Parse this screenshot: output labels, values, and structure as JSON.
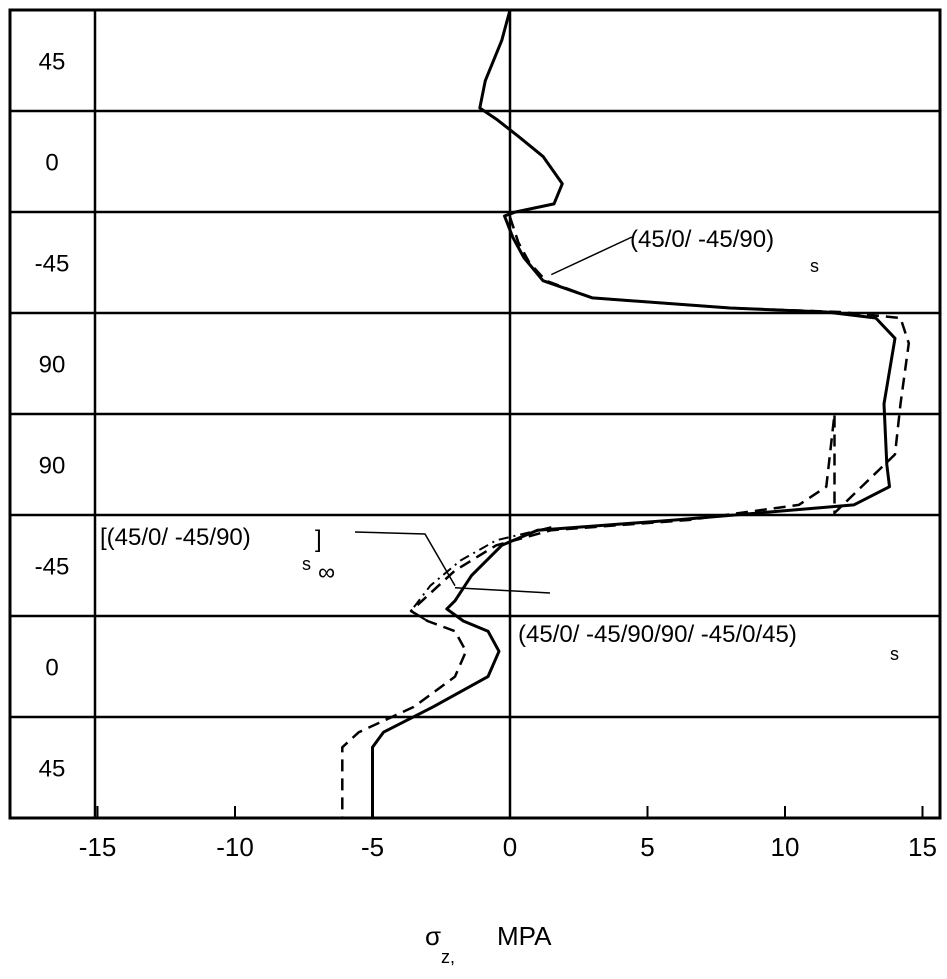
{
  "chart_data": {
    "type": "line",
    "xlim": [
      -15,
      15
    ],
    "x_ticks": [
      -15,
      -10,
      -5,
      0,
      5,
      10,
      15
    ],
    "xlabel": "σz, MPA",
    "xlabel_main": "σ",
    "xlabel_sub": "z,",
    "xlabel_unit": "MPA",
    "ply_labels": [
      "45",
      "0",
      "-45",
      "90",
      "90",
      "-45",
      "0",
      "45"
    ],
    "y_range": [
      0,
      8
    ],
    "grid": "horizontal ply boundaries",
    "series": [
      {
        "name": "(45/0/-45/90/90/-45/0/45)s",
        "style": "solid",
        "points": [
          [
            0,
            0
          ],
          [
            -0.3,
            0.3
          ],
          [
            -0.9,
            0.7
          ],
          [
            -1.1,
            0.97
          ],
          [
            -0.5,
            1.08
          ],
          [
            0.3,
            1.25
          ],
          [
            1.2,
            1.45
          ],
          [
            1.9,
            1.72
          ],
          [
            1.6,
            1.92
          ],
          [
            0.2,
            2.0
          ],
          [
            -0.2,
            2.04
          ],
          [
            0.1,
            2.25
          ],
          [
            0.5,
            2.45
          ],
          [
            1.2,
            2.68
          ],
          [
            3.0,
            2.85
          ],
          [
            8.0,
            2.95
          ],
          [
            11.5,
            2.99
          ],
          [
            13.3,
            3.05
          ],
          [
            14.0,
            3.25
          ],
          [
            13.6,
            3.9
          ],
          [
            13.7,
            4.5
          ],
          [
            13.8,
            4.72
          ],
          [
            12.5,
            4.9
          ],
          [
            6.0,
            5.05
          ],
          [
            1.0,
            5.15
          ],
          [
            -0.3,
            5.3
          ],
          [
            -1.4,
            5.6
          ],
          [
            -2.0,
            5.85
          ],
          [
            -2.3,
            5.93
          ],
          [
            -1.7,
            6.05
          ],
          [
            -0.8,
            6.15
          ],
          [
            -0.4,
            6.35
          ],
          [
            -0.8,
            6.6
          ],
          [
            -2.8,
            6.9
          ],
          [
            -4.6,
            7.15
          ],
          [
            -5.0,
            7.3
          ],
          [
            -5.0,
            8.0
          ]
        ]
      },
      {
        "name": "(45/0/-45/90)s",
        "style": "dashed",
        "points": [
          [
            0,
            2.05
          ],
          [
            0.3,
            2.3
          ],
          [
            0.7,
            2.5
          ],
          [
            1.3,
            2.68
          ],
          [
            3.0,
            2.85
          ],
          [
            8.0,
            2.95
          ],
          [
            12.0,
            2.99
          ],
          [
            14.2,
            3.05
          ],
          [
            14.5,
            3.3
          ],
          [
            14.2,
            3.9
          ],
          [
            14.0,
            4.4
          ],
          [
            11.8,
            4.98
          ],
          [
            11.8,
            4.5
          ],
          [
            11.8,
            4.0
          ],
          [
            11.5,
            4.72
          ],
          [
            10.5,
            4.9
          ],
          [
            6.5,
            5.05
          ],
          [
            1.5,
            5.15
          ],
          [
            -0.5,
            5.3
          ],
          [
            -2.0,
            5.55
          ],
          [
            -3.0,
            5.8
          ],
          [
            -3.6,
            5.95
          ],
          [
            -3.0,
            6.05
          ],
          [
            -2.0,
            6.15
          ],
          [
            -1.6,
            6.35
          ],
          [
            -2.0,
            6.6
          ],
          [
            -3.5,
            6.9
          ],
          [
            -5.5,
            7.15
          ],
          [
            -6.1,
            7.3
          ],
          [
            -6.1,
            8.0
          ]
        ]
      },
      {
        "name": "[(45/0/-45/90)s]∞",
        "style": "dash-dot",
        "points": [
          [
            1.5,
            5.12
          ],
          [
            -0.5,
            5.25
          ],
          [
            -1.8,
            5.45
          ],
          [
            -2.9,
            5.7
          ],
          [
            -3.6,
            5.95
          ],
          [
            -3.0,
            6.05
          ]
        ]
      }
    ],
    "annotations": [
      {
        "main": "(45/0/ -45/90)",
        "sub": "s",
        "arrow_to": [
          1.5,
          2.62
        ]
      },
      {
        "main": "[(45/0/ -45/90)",
        "sub": "s",
        "suffix": "]",
        "sub2": "∞",
        "arrow_to": [
          -2.0,
          5.7
        ]
      },
      {
        "main": "(45/0/ -45/90/90/ -45/0/45)",
        "sub": "s",
        "arrow_to": [
          -2.0,
          5.72
        ]
      }
    ]
  }
}
